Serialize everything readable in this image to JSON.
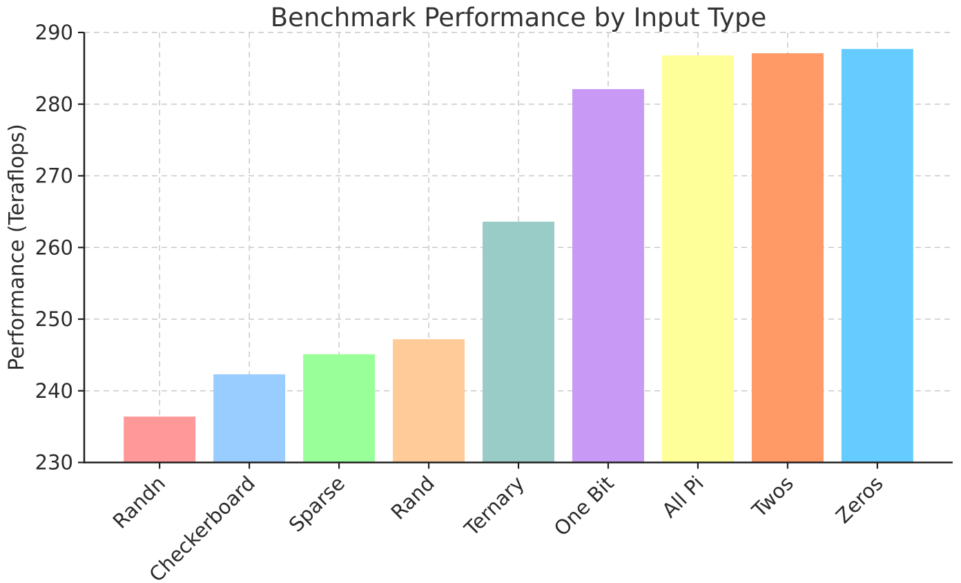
{
  "chart_data": {
    "type": "bar",
    "title": "Benchmark Performance by Input Type",
    "xlabel": "",
    "ylabel": "Performance (Teraflops)",
    "categories": [
      "Randn",
      "Checkerboard",
      "Sparse",
      "Rand",
      "Ternary",
      "One Bit",
      "All Pi",
      "Twos",
      "Zeros"
    ],
    "values": [
      236.4,
      242.3,
      245.1,
      247.2,
      263.6,
      282.1,
      286.8,
      287.1,
      287.7
    ],
    "bar_colors": [
      "#ff9999",
      "#99ccff",
      "#99ff99",
      "#ffcc99",
      "#99ccc6",
      "#c899f5",
      "#ffff99",
      "#ff9966",
      "#66ccff"
    ],
    "ylim": [
      230,
      290
    ],
    "yticks": [
      230,
      240,
      250,
      260,
      270,
      280,
      290
    ],
    "xtick_rotation_deg": 45,
    "legend_position": "none",
    "grid": {
      "visible": true,
      "axes": "both",
      "line_style": "dashed",
      "color": "#c9c9c9"
    },
    "styles": {
      "background_color": "#ffffff",
      "spine_color": "#1f1f1f",
      "text_color": "#2b2b2b",
      "title_color": "#333333"
    }
  }
}
